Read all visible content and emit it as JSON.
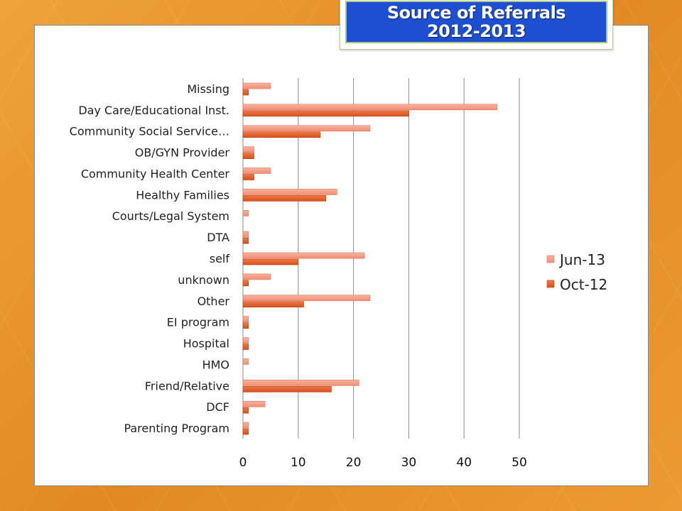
{
  "header": {
    "title_line1": "Source of Referrals",
    "title_line2": "2012-2013"
  },
  "colors": {
    "jun13": "#f28d74",
    "oct12": "#d8501f",
    "grid": "#8c8c8c"
  },
  "chart_data": {
    "type": "bar",
    "orientation": "horizontal",
    "categories": [
      "Missing",
      "Day Care/Educational Inst.",
      "Community Social Service…",
      "OB/GYN Provider",
      "Community Health Center",
      "Healthy Families",
      "Courts/Legal System",
      "DTA",
      "self",
      "unknown",
      "Other",
      "EI program",
      "Hospital",
      "HMO",
      "Friend/Relative",
      "DCF",
      "Parenting Program"
    ],
    "series": [
      {
        "name": "Jun-13",
        "values": [
          5,
          46,
          23,
          2,
          5,
          17,
          1,
          1,
          22,
          5,
          23,
          1,
          1,
          1,
          21,
          4,
          1
        ]
      },
      {
        "name": "Oct-12",
        "values": [
          1,
          30,
          14,
          2,
          2,
          15,
          0,
          1,
          10,
          1,
          11,
          1,
          1,
          0,
          16,
          1,
          1
        ]
      }
    ],
    "xticks": [
      "0",
      "10",
      "20",
      "30",
      "40",
      "50"
    ],
    "xlim": [
      0,
      50
    ],
    "grid": true,
    "legend": "right"
  }
}
